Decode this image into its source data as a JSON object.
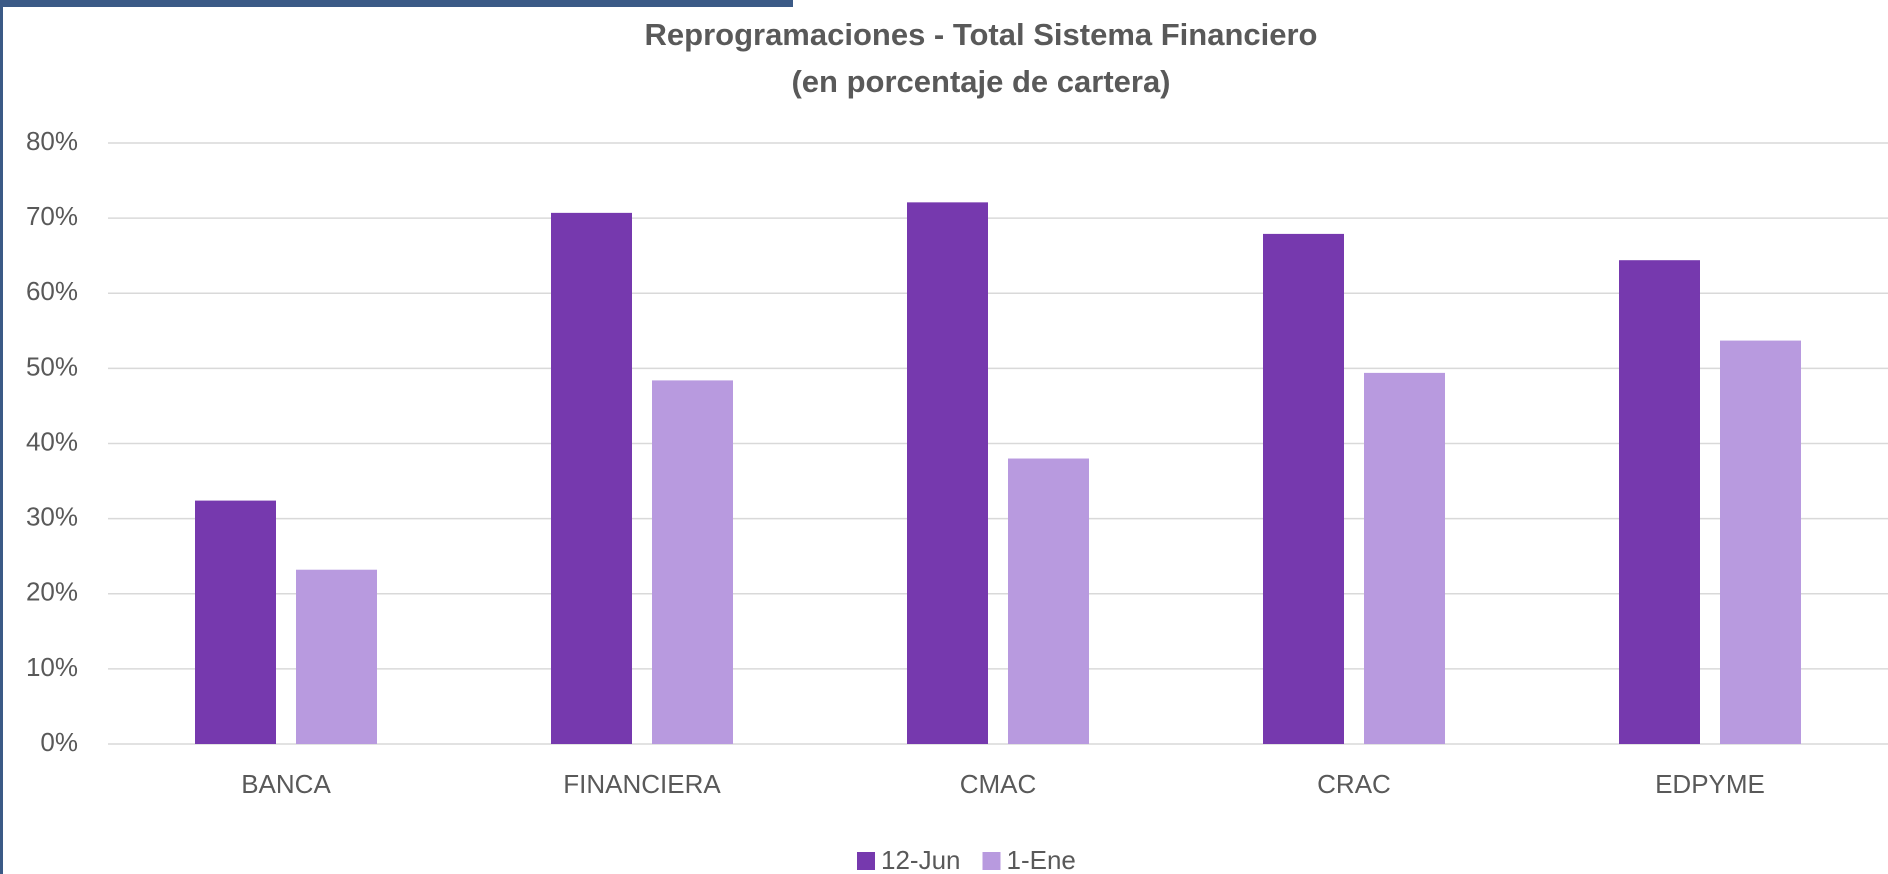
{
  "chart_data": {
    "type": "bar",
    "title": "Reprogramaciones - Total Sistema Financiero",
    "subtitle": "(en porcentaje de cartera)",
    "categories": [
      "BANCA",
      "FINANCIERA",
      "CMAC",
      "CRAC",
      "EDPYME"
    ],
    "series": [
      {
        "name": "12-Jun",
        "color": "#7639ae",
        "values": [
          32.4,
          70.7,
          72.1,
          67.9,
          64.4
        ]
      },
      {
        "name": "1-Ene",
        "color": "#b89adf",
        "values": [
          23.2,
          48.4,
          38.0,
          49.4,
          53.7
        ]
      }
    ],
    "ylim": [
      0,
      80
    ],
    "yticks": [
      {
        "value": 0,
        "label": "0%"
      },
      {
        "value": 10,
        "label": "10%"
      },
      {
        "value": 20,
        "label": "20%"
      },
      {
        "value": 30,
        "label": "30%"
      },
      {
        "value": 40,
        "label": "40%"
      },
      {
        "value": 50,
        "label": "50%"
      },
      {
        "value": 60,
        "label": "60%"
      },
      {
        "value": 70,
        "label": "70%"
      },
      {
        "value": 80,
        "label": "80%"
      }
    ],
    "grid": true,
    "legend": "bottom"
  }
}
